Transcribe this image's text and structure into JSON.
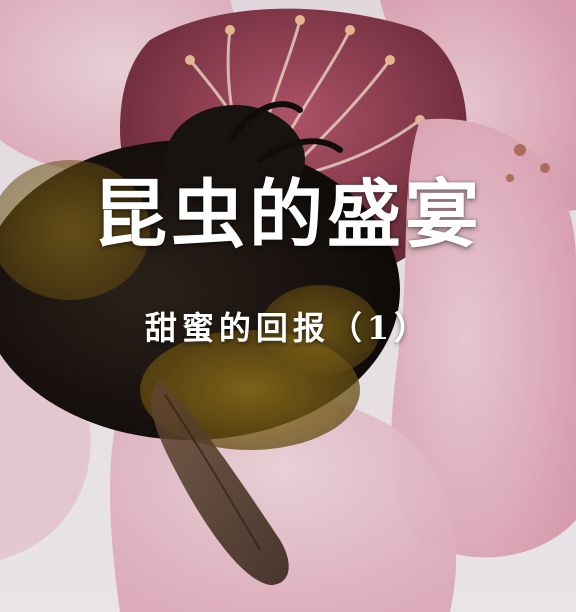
{
  "video": {
    "title": "昆虫的盛宴",
    "subtitle": "甜蜜的回报（1）"
  },
  "scene": {
    "subject": "bumblebee-on-flower-icon",
    "petal_color": "#f2c7d3",
    "bee_dark": "#1c1512",
    "bee_yellow": "#8a6a18",
    "background": "#f3eef0"
  }
}
